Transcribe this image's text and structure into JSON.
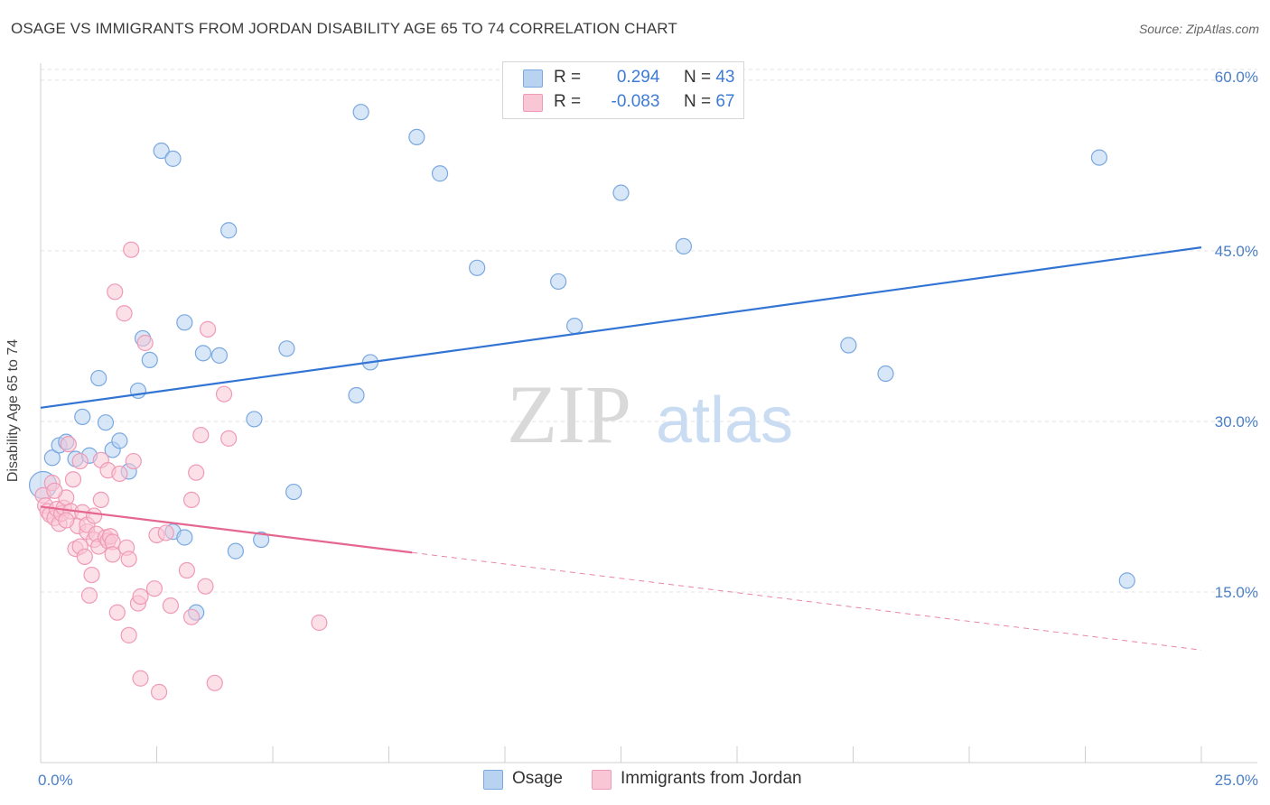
{
  "title": "OSAGE VS IMMIGRANTS FROM JORDAN DISABILITY AGE 65 TO 74 CORRELATION CHART",
  "source": "Source: ZipAtlas.com",
  "watermark": {
    "zip": "ZIP",
    "atlas": "atlas"
  },
  "legend": {
    "rows": [
      {
        "r_label": "R =",
        "r_value": "0.294",
        "n_label": "N =",
        "n_value": "43"
      },
      {
        "r_label": "R =",
        "r_value": "-0.083",
        "n_label": "N =",
        "n_value": "67"
      }
    ]
  },
  "bottom_legend": {
    "osage": "Osage",
    "jordan": "Immigrants from Jordan"
  },
  "colors": {
    "osage_fill": "#b8d3f2",
    "osage_stroke": "#7aa8e0",
    "osage_line": "#3274d3",
    "jordan_fill": "#f9c6d6",
    "jordan_stroke": "#ef9ab7",
    "jordan_line": "#e5668f",
    "axis_text": "#4a7fc8",
    "grid": "#e3e3e3"
  },
  "chart_data": {
    "type": "scatter",
    "title": "OSAGE VS IMMIGRANTS FROM JORDAN DISABILITY AGE 65 TO 74 CORRELATION CHART",
    "xlabel": "",
    "ylabel": "Disability Age 65 to 74",
    "xlim": [
      0,
      25
    ],
    "ylim": [
      0,
      61.5
    ],
    "x_tick_labels": [
      "0.0%",
      "25.0%"
    ],
    "y_ticks": [
      15,
      30,
      45,
      60
    ],
    "y_tick_labels": [
      "15.0%",
      "30.0%",
      "45.0%",
      "60.0%"
    ],
    "grid": true,
    "legend_position": "top-center",
    "series": [
      {
        "name": "Osage",
        "r": 0.294,
        "n": 43,
        "trend": {
          "x": [
            0,
            25
          ],
          "y": [
            31.2,
            45.3
          ],
          "dashed_from": null
        },
        "points": [
          [
            0.05,
            24.4
          ],
          [
            0.25,
            26.8
          ],
          [
            0.4,
            27.9
          ],
          [
            0.55,
            28.2
          ],
          [
            0.75,
            26.7
          ],
          [
            0.9,
            30.4
          ],
          [
            1.05,
            27.0
          ],
          [
            1.25,
            33.8
          ],
          [
            1.4,
            29.9
          ],
          [
            1.55,
            27.5
          ],
          [
            1.7,
            28.3
          ],
          [
            1.9,
            25.6
          ],
          [
            2.1,
            32.7
          ],
          [
            2.2,
            37.3
          ],
          [
            2.35,
            35.4
          ],
          [
            2.6,
            53.8
          ],
          [
            2.85,
            53.1
          ],
          [
            2.85,
            20.3
          ],
          [
            3.1,
            19.8
          ],
          [
            3.1,
            38.7
          ],
          [
            3.35,
            13.2
          ],
          [
            3.5,
            36.0
          ],
          [
            3.85,
            35.8
          ],
          [
            4.05,
            46.8
          ],
          [
            4.2,
            18.6
          ],
          [
            4.6,
            30.2
          ],
          [
            4.75,
            19.6
          ],
          [
            5.3,
            36.4
          ],
          [
            5.45,
            23.8
          ],
          [
            6.8,
            32.3
          ],
          [
            6.9,
            57.2
          ],
          [
            7.1,
            35.2
          ],
          [
            8.1,
            55.0
          ],
          [
            8.6,
            51.8
          ],
          [
            9.4,
            43.5
          ],
          [
            11.15,
            42.3
          ],
          [
            11.5,
            38.4
          ],
          [
            12.5,
            50.1
          ],
          [
            13.85,
            45.4
          ],
          [
            17.4,
            36.7
          ],
          [
            18.2,
            34.2
          ],
          [
            22.8,
            53.2
          ],
          [
            23.4,
            16.0
          ]
        ]
      },
      {
        "name": "Immigrants from Jordan",
        "r": -0.083,
        "n": 67,
        "trend": {
          "x": [
            0,
            25
          ],
          "y": [
            22.5,
            9.9
          ],
          "solid_until_x": 8.0
        },
        "points": [
          [
            0.05,
            23.5
          ],
          [
            0.1,
            22.6
          ],
          [
            0.15,
            22.1
          ],
          [
            0.2,
            21.8
          ],
          [
            0.25,
            24.6
          ],
          [
            0.3,
            21.5
          ],
          [
            0.35,
            22.3
          ],
          [
            0.4,
            21.0
          ],
          [
            0.45,
            21.9
          ],
          [
            0.5,
            22.4
          ],
          [
            0.55,
            23.3
          ],
          [
            0.6,
            28.0
          ],
          [
            0.65,
            22.1
          ],
          [
            0.7,
            24.9
          ],
          [
            0.75,
            18.8
          ],
          [
            0.8,
            20.8
          ],
          [
            0.85,
            19.0
          ],
          [
            0.9,
            22.0
          ],
          [
            0.95,
            18.1
          ],
          [
            1.0,
            20.3
          ],
          [
            1.0,
            20.9
          ],
          [
            1.05,
            14.7
          ],
          [
            1.1,
            16.5
          ],
          [
            1.15,
            19.6
          ],
          [
            1.2,
            20.1
          ],
          [
            1.25,
            19.0
          ],
          [
            1.3,
            26.6
          ],
          [
            1.3,
            23.1
          ],
          [
            1.4,
            19.8
          ],
          [
            1.45,
            25.7
          ],
          [
            1.45,
            19.5
          ],
          [
            1.5,
            19.9
          ],
          [
            1.55,
            19.4
          ],
          [
            1.6,
            41.4
          ],
          [
            1.65,
            13.2
          ],
          [
            1.7,
            25.4
          ],
          [
            1.8,
            39.5
          ],
          [
            1.85,
            18.9
          ],
          [
            1.9,
            17.9
          ],
          [
            1.9,
            11.2
          ],
          [
            1.95,
            45.1
          ],
          [
            2.0,
            26.5
          ],
          [
            2.1,
            14.0
          ],
          [
            2.15,
            14.6
          ],
          [
            2.15,
            7.4
          ],
          [
            2.25,
            36.9
          ],
          [
            2.45,
            15.3
          ],
          [
            2.5,
            20.0
          ],
          [
            2.55,
            6.2
          ],
          [
            2.7,
            20.2
          ],
          [
            2.8,
            13.8
          ],
          [
            3.15,
            16.9
          ],
          [
            3.25,
            12.8
          ],
          [
            3.25,
            23.1
          ],
          [
            3.35,
            25.5
          ],
          [
            3.45,
            28.8
          ],
          [
            3.55,
            15.5
          ],
          [
            3.6,
            38.1
          ],
          [
            3.75,
            7.0
          ],
          [
            3.95,
            32.4
          ],
          [
            4.05,
            28.5
          ],
          [
            6.0,
            12.3
          ],
          [
            0.3,
            23.9
          ],
          [
            0.55,
            21.3
          ],
          [
            0.85,
            26.5
          ],
          [
            1.15,
            21.7
          ],
          [
            1.55,
            18.3
          ]
        ]
      }
    ]
  }
}
